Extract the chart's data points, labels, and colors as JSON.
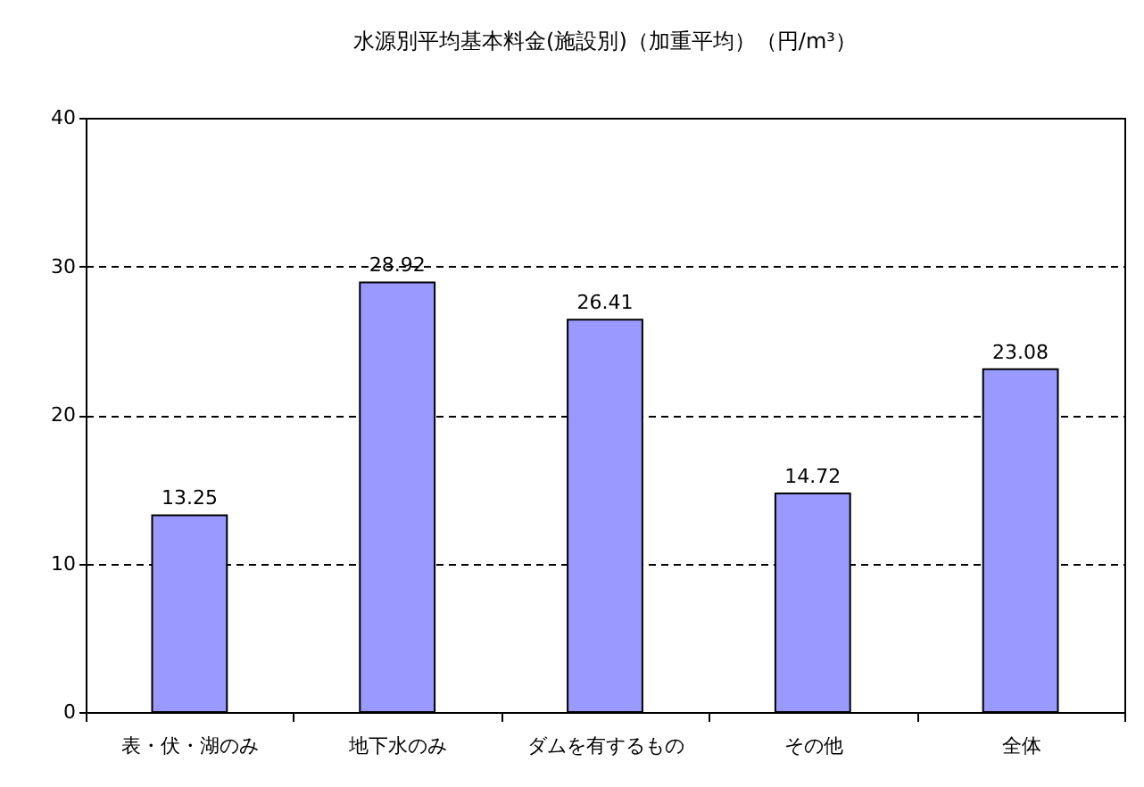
{
  "chart_data": {
    "type": "bar",
    "title": "水源別平均基本料金(施設別)（加重平均）（円/m³）",
    "categories": [
      "表・伏・湖のみ",
      "地下水のみ",
      "ダムを有するもの",
      "その他",
      "全体"
    ],
    "values": [
      13.25,
      28.92,
      26.41,
      14.72,
      23.08
    ],
    "color": "#9999ff",
    "ylim": [
      0,
      40
    ],
    "yticks": [
      0,
      10,
      20,
      30,
      40
    ],
    "grid": "y",
    "line_style": "dashed",
    "data_labels": true
  }
}
